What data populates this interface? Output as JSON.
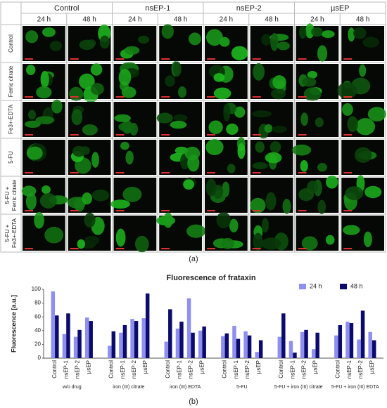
{
  "panel_a": {
    "label": "(a)",
    "groups": [
      "Control",
      "nsEP-1",
      "nsEP-2",
      "µsEP"
    ],
    "times": [
      "24 h",
      "48 h"
    ],
    "rows": [
      {
        "lines": [
          "Control"
        ]
      },
      {
        "lines": [
          "Ferric citrate"
        ]
      },
      {
        "lines": [
          "Fe3+-EDTA"
        ]
      },
      {
        "lines": [
          "5-FU"
        ]
      },
      {
        "lines": [
          "5-FU +",
          "Ferric citrate"
        ]
      },
      {
        "lines": [
          "5-FU +",
          "Fe3+-EDTA"
        ]
      }
    ]
  },
  "chart_data": {
    "type": "bar",
    "title": "Fluorescence of frataxin",
    "label": "(b)",
    "ylabel": "Fluorescence [a.u.]",
    "categories": [
      "Control",
      "nsEP-1",
      "nsEP-2",
      "µsEP",
      "Control",
      "nsEP-1",
      "nsEP-2",
      "µsEP",
      "Control",
      "nsEP-1",
      "nsEP-2",
      "µsEP",
      "Control",
      "nsEP-1",
      "nsEP-2",
      "µsEP",
      "Control",
      "nsEP-1",
      "nsEP-2",
      "µsEP",
      "Control",
      "nsEP-1",
      "nsEP-2",
      "µsEP"
    ],
    "groups": [
      "w/o drug",
      "iron (III) citrate",
      "iron (III) EDTA",
      "5-FU",
      "5-FU + iron (III) citrate",
      "5-FU + iron (III) EDTA"
    ],
    "series": [
      {
        "name": "24 h",
        "color": "#8f8ff0",
        "values": [
          97,
          35,
          31,
          59,
          18,
          37,
          57,
          58,
          24,
          43,
          87,
          40,
          32,
          47,
          39,
          9,
          31,
          25,
          38,
          13,
          33,
          53,
          27,
          38
        ]
      },
      {
        "name": "48 h",
        "color": "#0b0b6e",
        "values": [
          62,
          65,
          41,
          54,
          39,
          48,
          54,
          94,
          71,
          53,
          37,
          46,
          36,
          28,
          33,
          26,
          65,
          8,
          41,
          37,
          48,
          51,
          69,
          26
        ]
      }
    ],
    "ylim": [
      0,
      100
    ],
    "yticks": [
      0,
      20,
      40,
      60,
      80,
      100
    ],
    "grid": false,
    "legend": "upper right"
  }
}
